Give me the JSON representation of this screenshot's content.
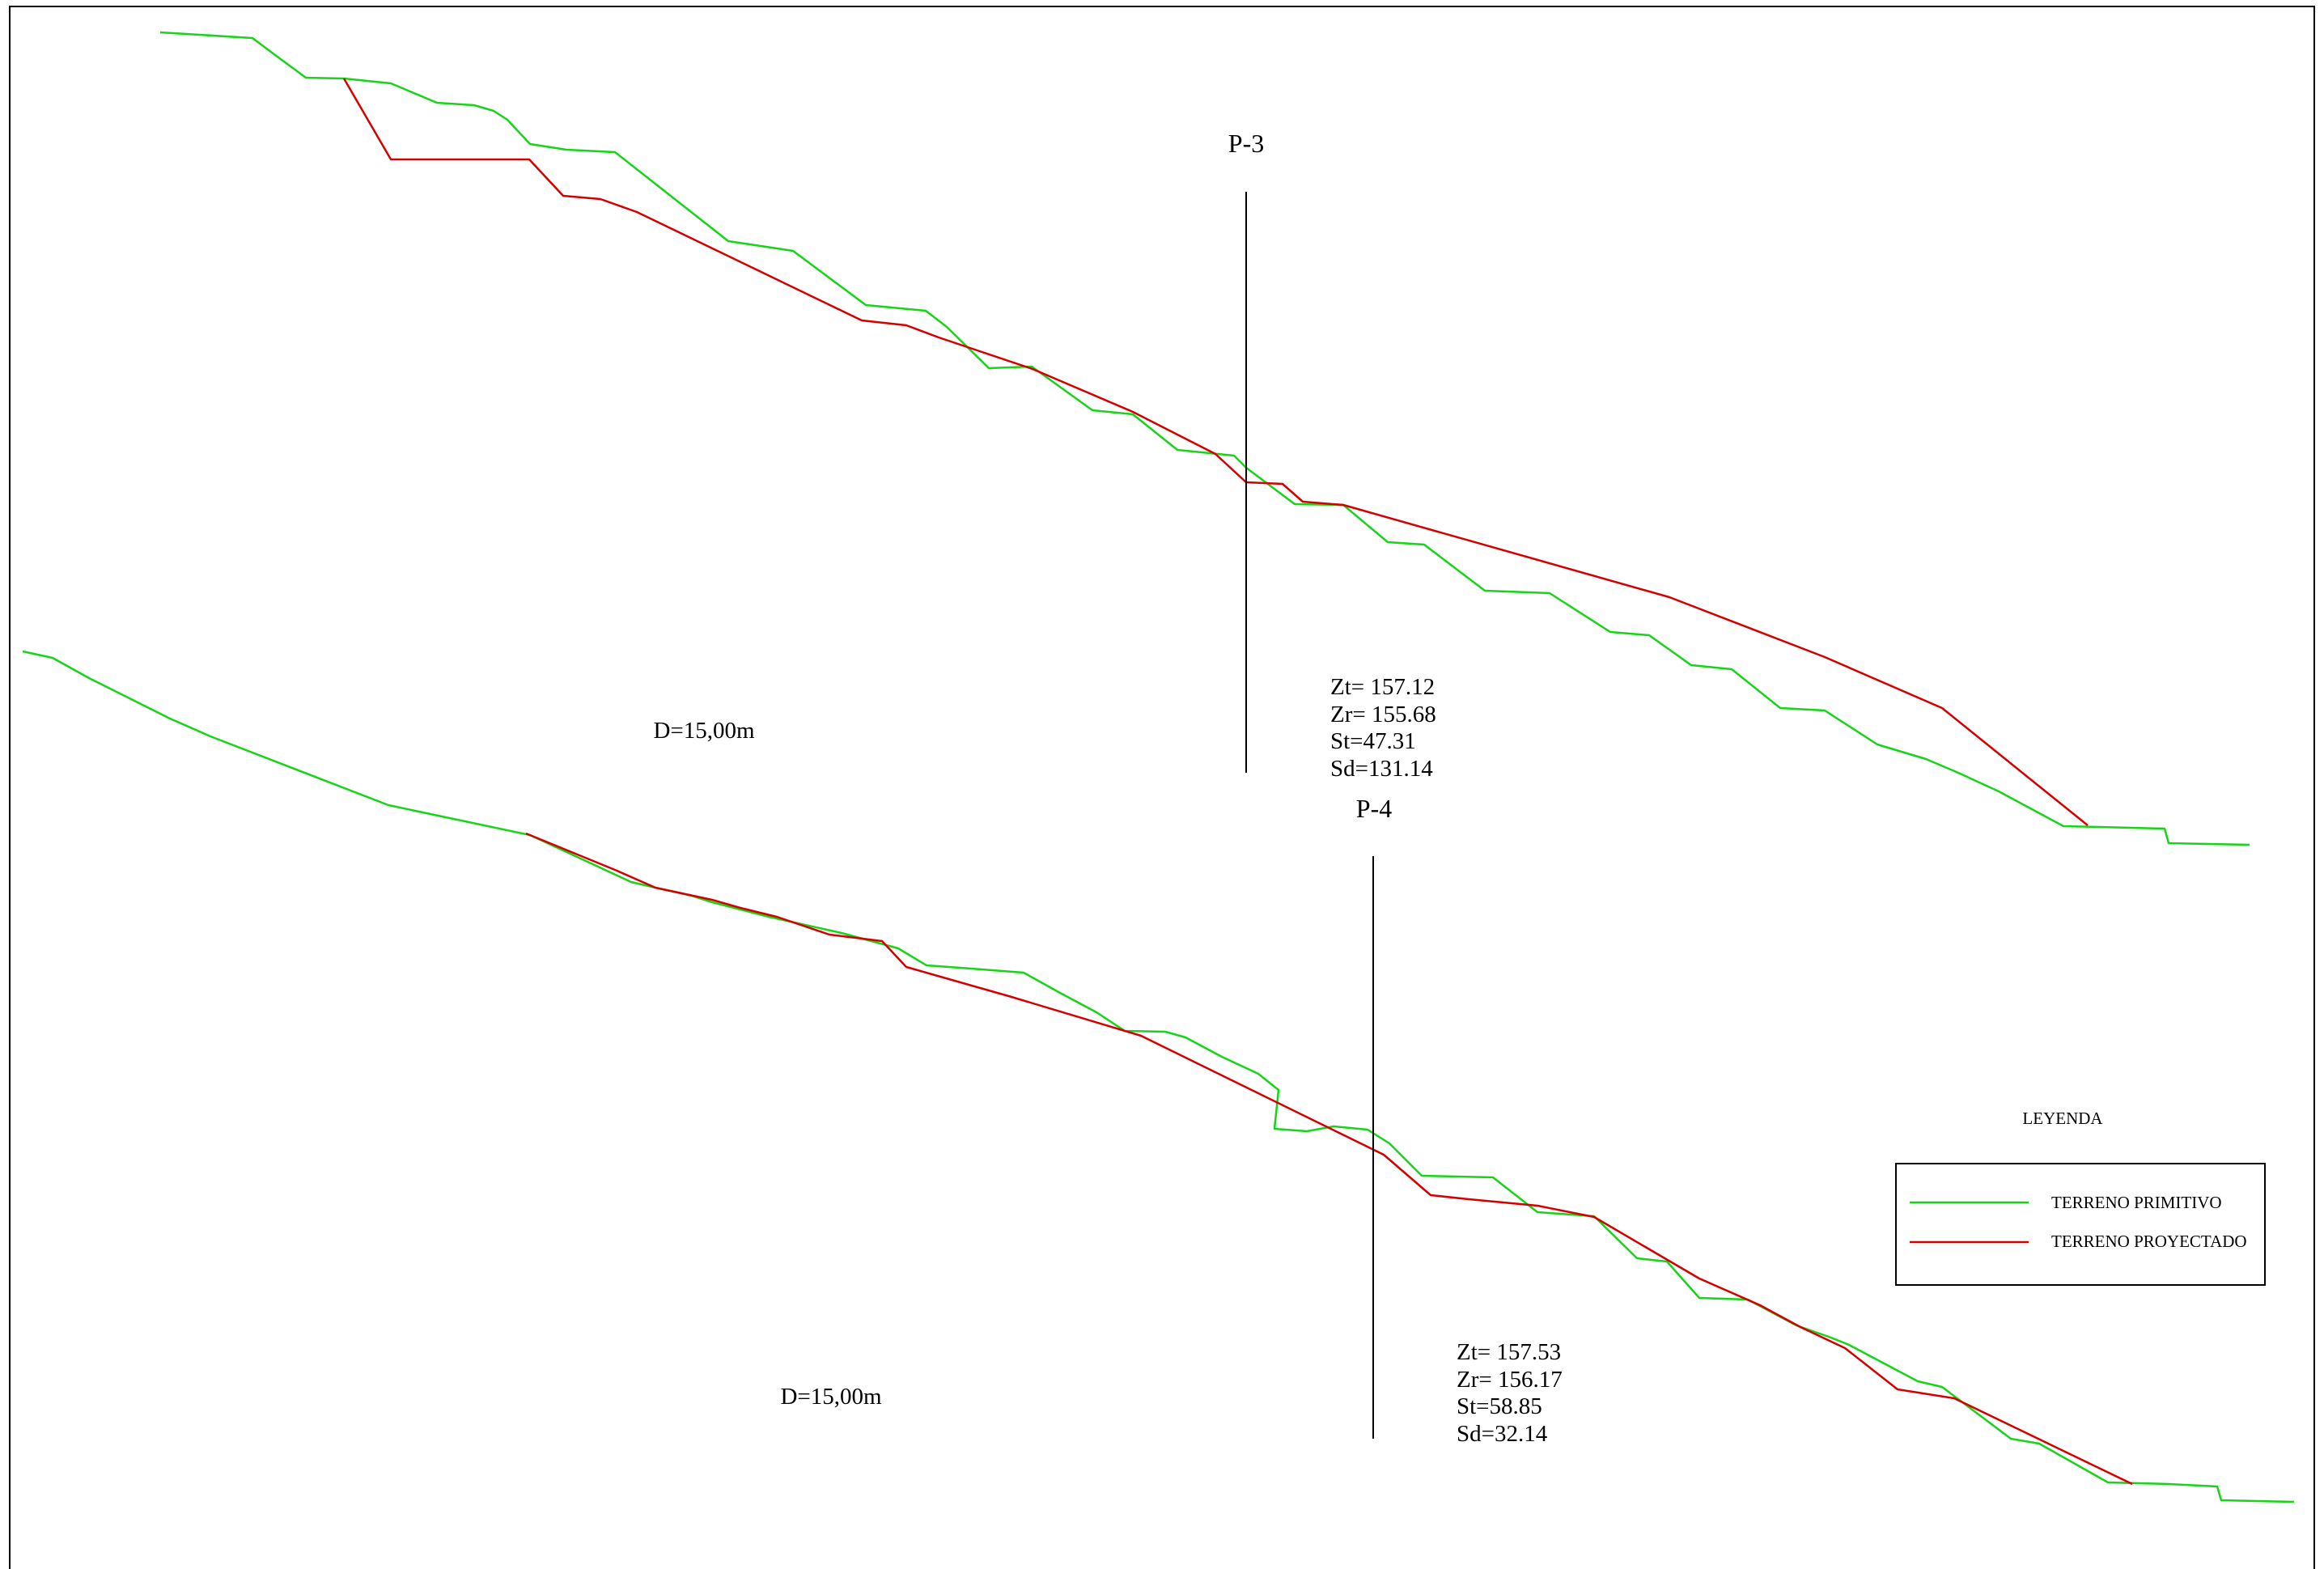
{
  "profiles": [
    {
      "id": "P-3",
      "title": "P-3",
      "distance_label": "D=15,00m",
      "readouts": [
        "Zt= 157.12",
        "Zr= 155.68",
        "St=47.31",
        "Sd=131.14"
      ]
    },
    {
      "id": "P-4",
      "title": "P-4",
      "distance_label": "D=15,00m",
      "readouts": [
        "Zt= 157.53",
        "Zr= 156.17",
        "St=58.85",
        "Sd=32.14"
      ]
    }
  ],
  "legend": {
    "title": "LEYENDA",
    "items": [
      {
        "label": "TERRENO PRIMITIVO",
        "color": "#18d418"
      },
      {
        "label": "TERRENO PROYECTADO",
        "color": "#d40000"
      }
    ]
  },
  "colors": {
    "primitivo": "#18d418",
    "proyectado": "#d40000",
    "axis": "#000000"
  }
}
